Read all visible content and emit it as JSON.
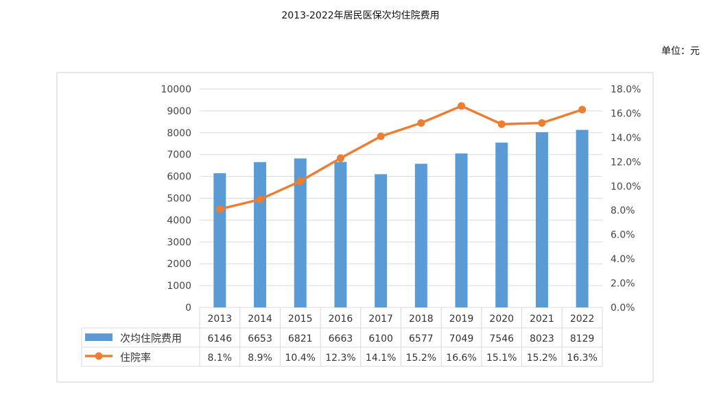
{
  "page": {
    "title": "2013-2022年居民医保次均住院费用",
    "unit": "单位：元"
  },
  "colors": {
    "bar": "#5b9bd5",
    "line": "#ed7d31",
    "grid": "#d9d9d9",
    "frame": "#d0d0d0"
  },
  "chart_data": {
    "type": "bar",
    "title": "2013-2022年居民医保次均住院费用",
    "categories": [
      "2013",
      "2014",
      "2015",
      "2016",
      "2017",
      "2018",
      "2019",
      "2020",
      "2021",
      "2022"
    ],
    "series": [
      {
        "name": "次均住院费用",
        "type": "bar",
        "axis": "left",
        "values": [
          6146,
          6653,
          6821,
          6663,
          6100,
          6577,
          7049,
          7546,
          8023,
          8129
        ],
        "table_labels": [
          "6146",
          "6653",
          "6821",
          "6663",
          "6100",
          "6577",
          "7049",
          "7546",
          "8023",
          "8129"
        ]
      },
      {
        "name": "住院率",
        "type": "line",
        "axis": "right",
        "values": [
          8.1,
          8.9,
          10.4,
          12.3,
          14.1,
          15.2,
          16.6,
          15.1,
          15.2,
          16.3
        ],
        "table_labels": [
          "8.1%",
          "8.9%",
          "10.4%",
          "12.3%",
          "14.1%",
          "15.2%",
          "16.6%",
          "15.1%",
          "15.2%",
          "16.3%"
        ]
      }
    ],
    "y_left": {
      "range": [
        0,
        10000
      ],
      "ticks": [
        0,
        1000,
        2000,
        3000,
        4000,
        5000,
        6000,
        7000,
        8000,
        9000,
        10000
      ],
      "tick_labels": [
        "0",
        "1000",
        "2000",
        "3000",
        "4000",
        "5000",
        "6000",
        "7000",
        "8000",
        "9000",
        "10000"
      ]
    },
    "y_right": {
      "range": [
        0,
        18
      ],
      "ticks": [
        0,
        2,
        4,
        6,
        8,
        10,
        12,
        14,
        16,
        18
      ],
      "tick_labels": [
        "0.0%",
        "2.0%",
        "4.0%",
        "6.0%",
        "8.0%",
        "10.0%",
        "12.0%",
        "14.0%",
        "16.0%",
        "18.0%"
      ]
    },
    "grid": true,
    "legend_placement": "data-table"
  }
}
